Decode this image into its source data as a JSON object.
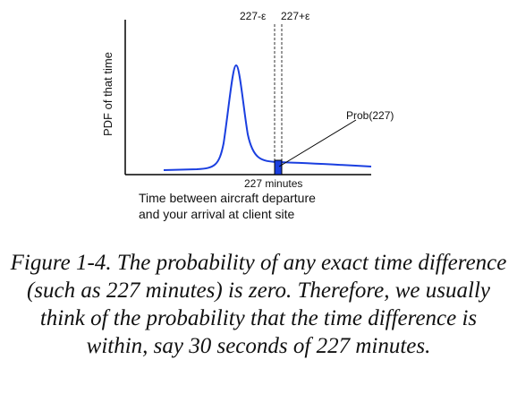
{
  "figure": {
    "y_axis_label": "PDF of that time",
    "x_axis_label_line1": "Time between aircraft departure",
    "x_axis_label_line2": "and your arrival at client site",
    "minus_eps_label": "227-ε",
    "plus_eps_label": "227+ε",
    "point_label": "227 minutes",
    "prob_label": "Prob(227)",
    "curve_color": "#1a3fe0",
    "shade_color": "#1a3fe0"
  },
  "caption": {
    "text": "Figure 1-4. The probability of any exact time difference (such as 227 minutes) is zero. Therefore, we usually think of the probability that the time difference is within, say 30 seconds of 227 minutes."
  }
}
